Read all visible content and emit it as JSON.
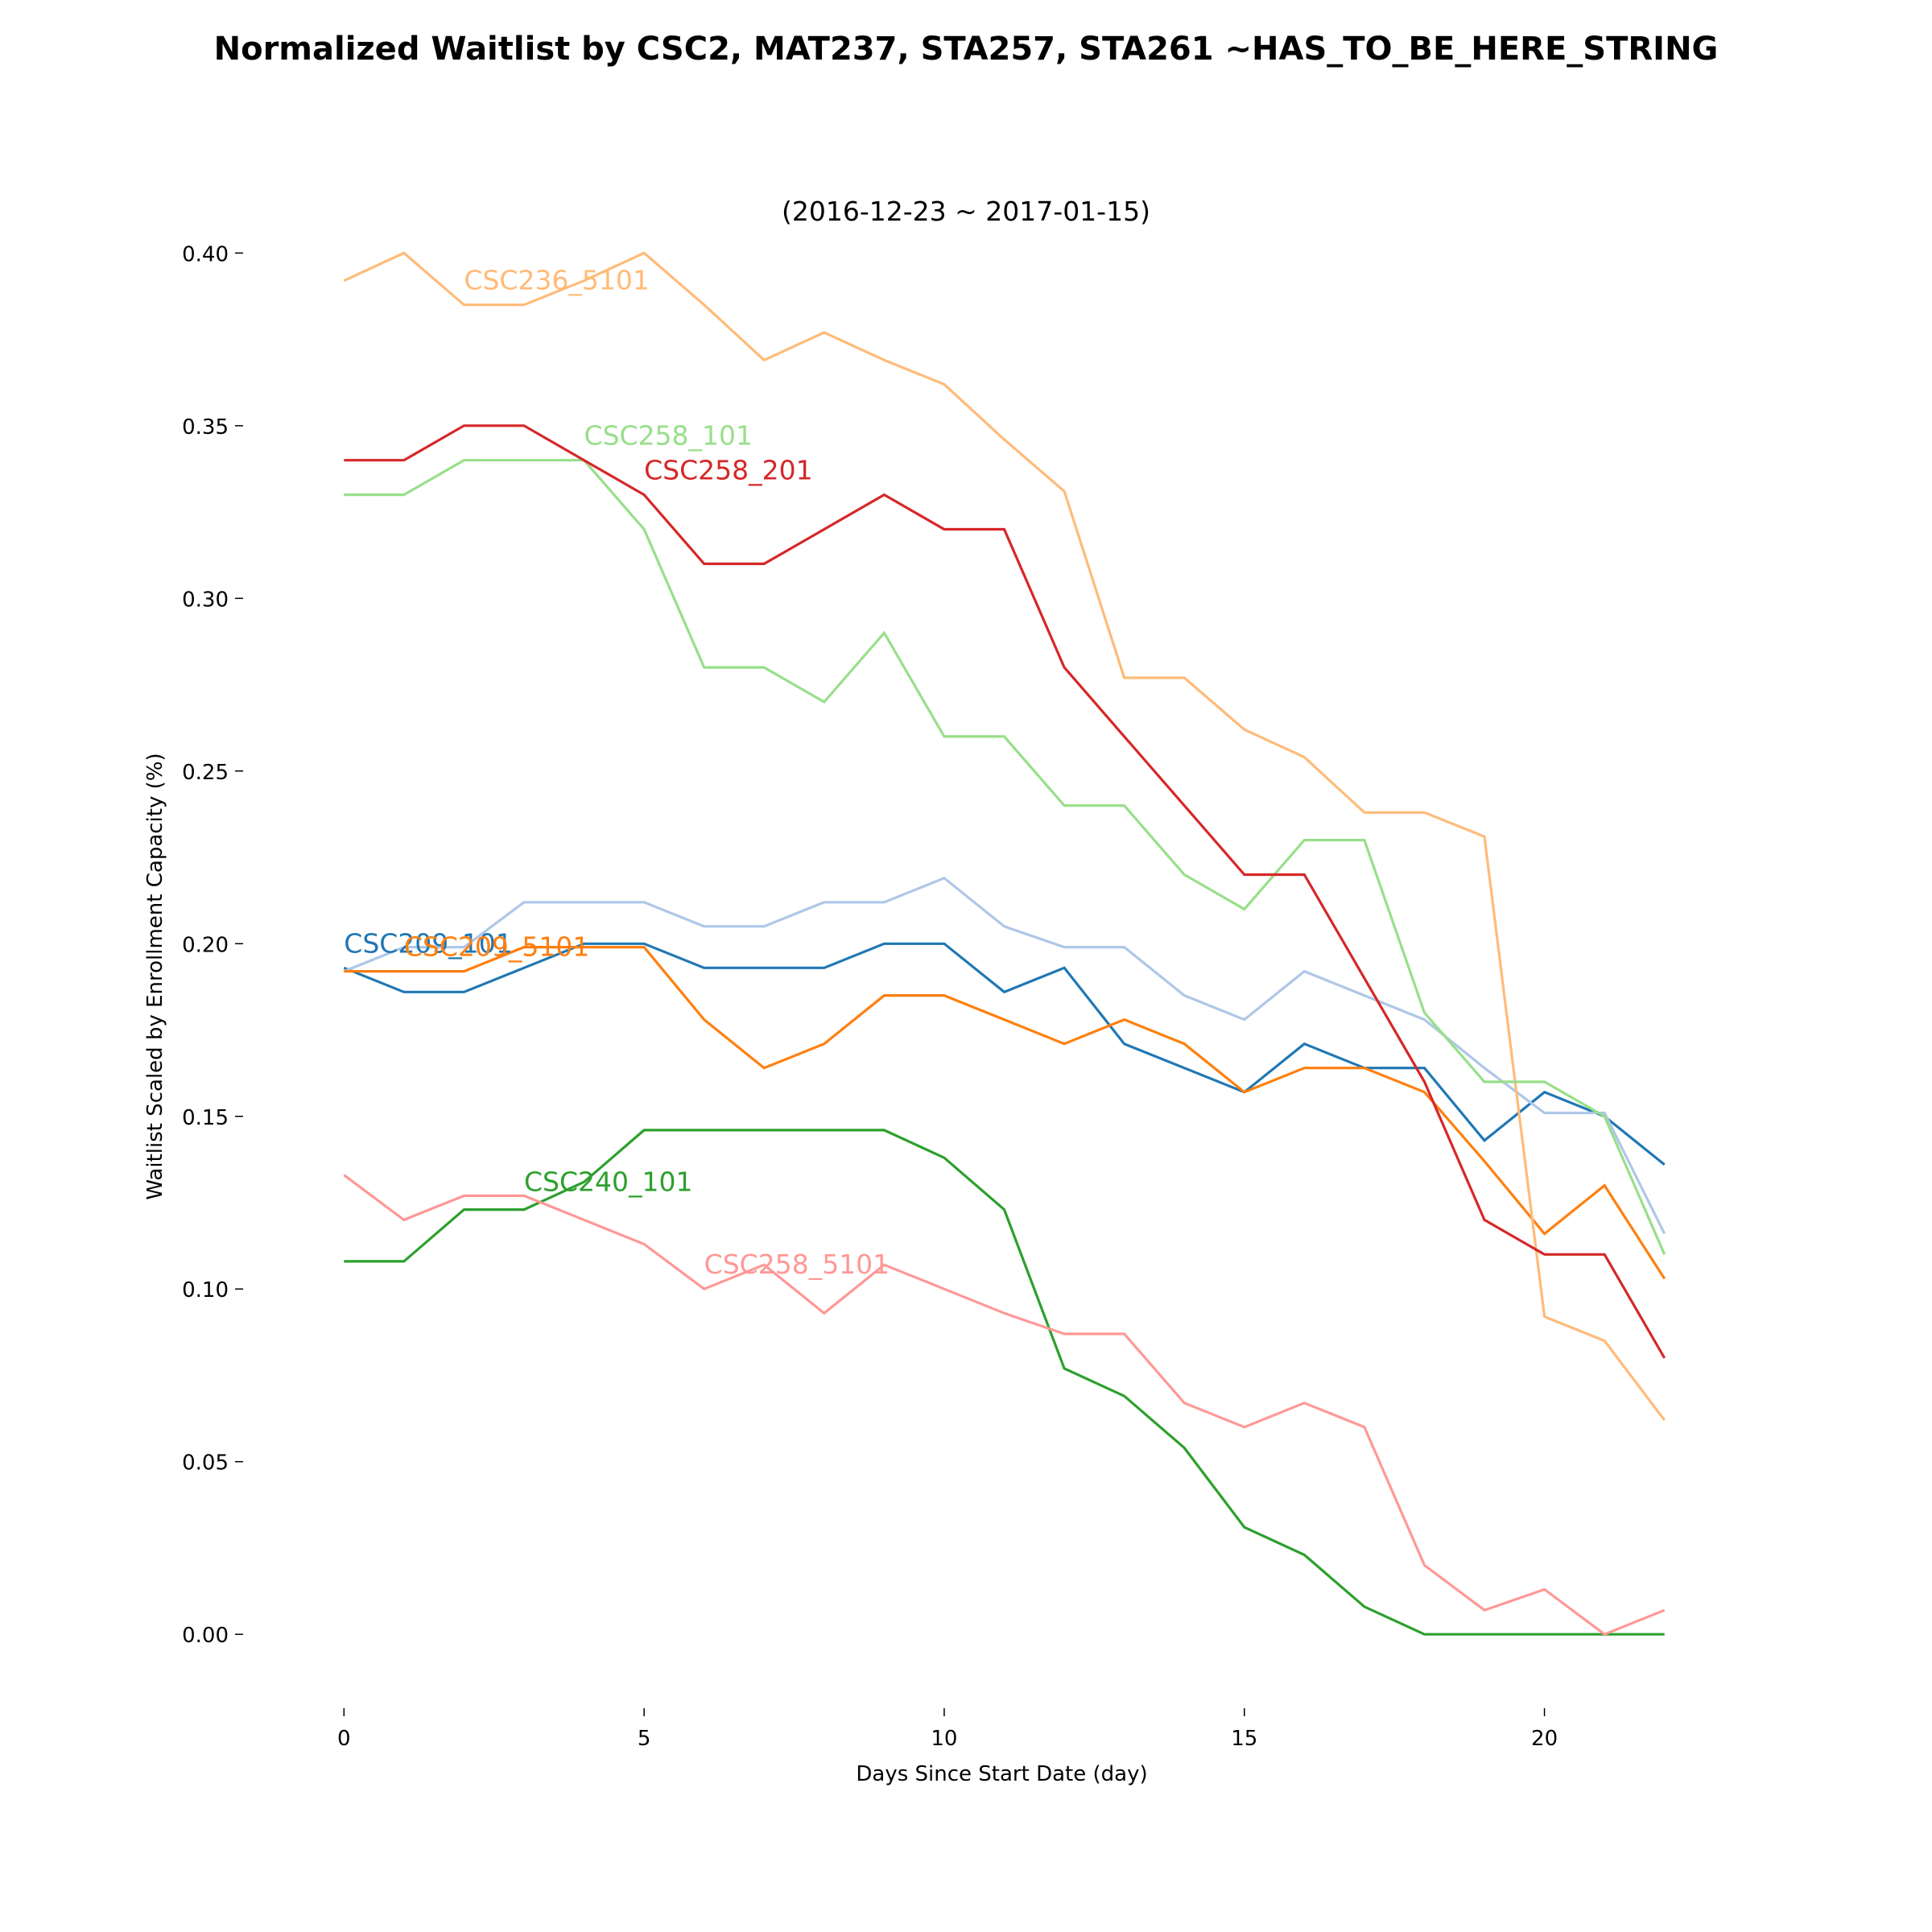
{
  "chart_data": {
    "type": "line",
    "title": "Normalized Waitlist by CSC2, MAT237, STA257, STA261 ~HAS_TO_BE_HERE_STRING",
    "subtitle": "(2016-12-23 ~ 2017-01-15)",
    "xlabel": "Days Since Start Date (day)",
    "ylabel": "Waitlist Scaled by Enrollment Capacity (%)",
    "xlim": [
      -0.5,
      22.5
    ],
    "ylim": [
      -0.02,
      0.415
    ],
    "xticks": [
      0,
      5,
      10,
      15,
      20
    ],
    "xtick_labels": [
      "0",
      "5",
      "10",
      "15",
      "20"
    ],
    "yticks": [
      0.0,
      0.05,
      0.1,
      0.15,
      0.2,
      0.25,
      0.3,
      0.35,
      0.4
    ],
    "ytick_labels": [
      "0.00",
      "0.05",
      "0.10",
      "0.15",
      "0.20",
      "0.25",
      "0.30",
      "0.35",
      "0.40"
    ],
    "grid": false,
    "legend": "none",
    "x": [
      0,
      1,
      2,
      3,
      4,
      5,
      6,
      7,
      8,
      9,
      10,
      11,
      12,
      13,
      14,
      15,
      16,
      17,
      18,
      19,
      20,
      21,
      22
    ],
    "series": [
      {
        "name": "CSC209_101",
        "color": "#1f77b4",
        "values": [
          0.193,
          0.186,
          0.186,
          0.193,
          0.2,
          0.2,
          0.193,
          0.193,
          0.193,
          0.2,
          0.2,
          0.186,
          0.193,
          0.171,
          0.164,
          0.157,
          0.171,
          0.164,
          0.164,
          0.143,
          0.157,
          0.15,
          0.136
        ],
        "label_x": 0,
        "label_y": 0.2
      },
      {
        "name": "",
        "color": "#aec7e8",
        "values": [
          0.192,
          0.199,
          0.199,
          0.212,
          0.212,
          0.212,
          0.205,
          0.205,
          0.212,
          0.212,
          0.219,
          0.205,
          0.199,
          0.199,
          0.185,
          0.178,
          0.192,
          0.185,
          0.178,
          0.164,
          0.151,
          0.151,
          0.116
        ]
      },
      {
        "name": "CSC209_5101",
        "color": "#ff7f0e",
        "values": [
          0.192,
          0.192,
          0.192,
          0.199,
          0.199,
          0.199,
          0.178,
          0.164,
          0.171,
          0.185,
          0.185,
          0.178,
          0.171,
          0.178,
          0.171,
          0.157,
          0.164,
          0.164,
          0.157,
          0.137,
          0.116,
          0.13,
          0.103
        ],
        "label_x": 1,
        "label_y": 0.199
      },
      {
        "name": "CSC236_5101",
        "color": "#ffbb78",
        "values": [
          0.392,
          0.4,
          0.385,
          0.385,
          0.392,
          0.4,
          0.385,
          0.369,
          0.377,
          0.369,
          0.362,
          0.346,
          0.331,
          0.277,
          0.277,
          0.262,
          0.254,
          0.238,
          0.238,
          0.231,
          0.092,
          0.085,
          0.062
        ],
        "label_x": 2,
        "label_y": 0.392
      },
      {
        "name": "CSC240_101",
        "color": "#2ca02c",
        "values": [
          0.108,
          0.108,
          0.123,
          0.123,
          0.131,
          0.146,
          0.146,
          0.146,
          0.146,
          0.146,
          0.138,
          0.123,
          0.077,
          0.069,
          0.054,
          0.031,
          0.023,
          0.008,
          0.0,
          0.0,
          0.0,
          0.0,
          0.0
        ],
        "label_x": 3,
        "label_y": 0.131
      },
      {
        "name": "CSC258_101",
        "color": "#98df8a",
        "values": [
          0.33,
          0.33,
          0.34,
          0.34,
          0.34,
          0.32,
          0.28,
          0.28,
          0.27,
          0.29,
          0.26,
          0.26,
          0.24,
          0.24,
          0.22,
          0.21,
          0.23,
          0.23,
          0.18,
          0.16,
          0.16,
          0.15,
          0.11
        ],
        "label_x": 4,
        "label_y": 0.347
      },
      {
        "name": "CSC258_201",
        "color": "#d62728",
        "values": [
          0.34,
          0.34,
          0.35,
          0.35,
          0.34,
          0.33,
          0.31,
          0.31,
          0.32,
          0.33,
          0.32,
          0.32,
          0.28,
          0.26,
          0.24,
          0.22,
          0.22,
          0.19,
          0.16,
          0.12,
          0.11,
          0.11,
          0.08
        ],
        "label_x": 5,
        "label_y": 0.337
      },
      {
        "name": "CSC258_5101",
        "color": "#ff9896",
        "values": [
          0.133,
          0.12,
          0.127,
          0.127,
          0.12,
          0.113,
          0.1,
          0.107,
          0.093,
          0.107,
          0.1,
          0.093,
          0.087,
          0.087,
          0.067,
          0.06,
          0.067,
          0.06,
          0.02,
          0.007,
          0.013,
          0.0,
          0.007
        ],
        "label_x": 6,
        "label_y": 0.107
      }
    ]
  }
}
